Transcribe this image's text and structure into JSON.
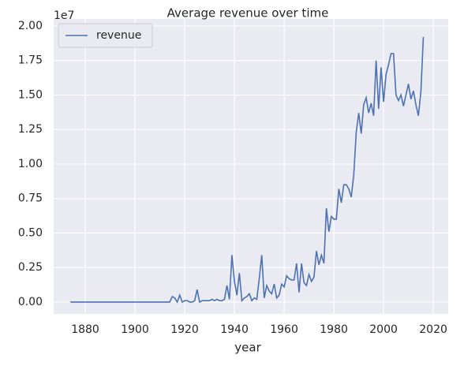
{
  "chart_data": {
    "type": "line",
    "title": "Average revenue over time",
    "xlabel": "year",
    "yaxis_offset": "1e7",
    "x": [
      1874,
      1880,
      1890,
      1900,
      1910,
      1913,
      1914,
      1915,
      1916,
      1917,
      1918,
      1919,
      1920,
      1921,
      1922,
      1923,
      1924,
      1925,
      1926,
      1927,
      1928,
      1929,
      1930,
      1931,
      1932,
      1933,
      1934,
      1935,
      1936,
      1937,
      1938,
      1939,
      1940,
      1941,
      1942,
      1943,
      1944,
      1945,
      1946,
      1947,
      1948,
      1949,
      1950,
      1951,
      1952,
      1953,
      1954,
      1955,
      1956,
      1957,
      1958,
      1959,
      1960,
      1961,
      1962,
      1963,
      1964,
      1965,
      1966,
      1967,
      1968,
      1969,
      1970,
      1971,
      1972,
      1973,
      1974,
      1975,
      1976,
      1977,
      1978,
      1979,
      1980,
      1981,
      1982,
      1983,
      1984,
      1985,
      1986,
      1987,
      1988,
      1989,
      1990,
      1991,
      1992,
      1993,
      1994,
      1995,
      1996,
      1997,
      1998,
      1999,
      2000,
      2001,
      2002,
      2003,
      2004,
      2005,
      2006,
      2007,
      2008,
      2009,
      2010,
      2011,
      2012,
      2013,
      2014,
      2015,
      2016
    ],
    "series": [
      {
        "name": "revenue",
        "color": "#4c72b0",
        "values": [
          0,
          0,
          0,
          0,
          0,
          0,
          0,
          0.04,
          0.03,
          0,
          0.05,
          0,
          0.01,
          0.01,
          0,
          0,
          0.01,
          0.09,
          0,
          0.01,
          0.01,
          0.01,
          0.01,
          0.02,
          0.01,
          0.02,
          0.01,
          0.01,
          0.02,
          0.12,
          0.02,
          0.34,
          0.15,
          0.05,
          0.21,
          0.01,
          0.03,
          0.04,
          0.06,
          0.01,
          0.03,
          0.02,
          0.17,
          0.34,
          0.03,
          0.12,
          0.08,
          0.06,
          0.13,
          0.03,
          0.05,
          0.13,
          0.11,
          0.19,
          0.17,
          0.16,
          0.16,
          0.28,
          0.07,
          0.28,
          0.14,
          0.12,
          0.2,
          0.15,
          0.18,
          0.37,
          0.27,
          0.34,
          0.28,
          0.68,
          0.51,
          0.62,
          0.6,
          0.6,
          0.82,
          0.72,
          0.85,
          0.85,
          0.82,
          0.76,
          0.92,
          1.23,
          1.37,
          1.22,
          1.43,
          1.48,
          1.37,
          1.44,
          1.35,
          1.75,
          1.4,
          1.7,
          1.45,
          1.65,
          1.72,
          1.8,
          1.8,
          1.5,
          1.46,
          1.5,
          1.42,
          1.5,
          1.58,
          1.47,
          1.53,
          1.43,
          1.35,
          1.52,
          1.92
        ]
      }
    ],
    "xlim": [
      1867.3,
      2026.0
    ],
    "xticks": [
      1880,
      1900,
      1920,
      1940,
      1960,
      1980,
      2000,
      2020
    ],
    "ylim": [
      -0.086,
      2.051
    ],
    "yticks": [
      {
        "value": 0,
        "label": "0.00"
      },
      {
        "value": 0.25,
        "label": "0.25"
      },
      {
        "value": 0.5,
        "label": "0.50"
      },
      {
        "value": 0.75,
        "label": "0.75"
      },
      {
        "value": 1,
        "label": "1.00"
      },
      {
        "value": 1.25,
        "label": "1.25"
      },
      {
        "value": 1.5,
        "label": "1.50"
      },
      {
        "value": 1.75,
        "label": "1.75"
      },
      {
        "value": 2,
        "label": "2.00"
      }
    ],
    "grid": true,
    "legend": "upper left"
  }
}
